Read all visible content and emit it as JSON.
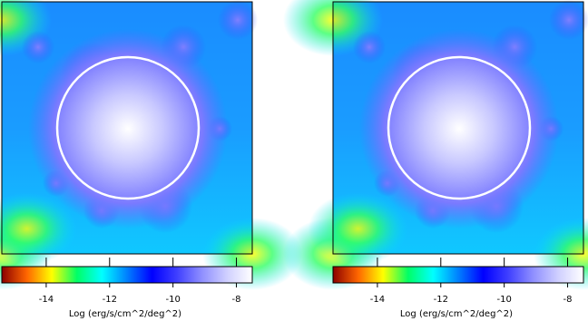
{
  "chart_data": [
    {
      "type": "image",
      "colorbar": {
        "label": "Log (erg/s/cm^2/deg^2)",
        "lim": [
          -15.4,
          -7.5
        ],
        "ticks": [
          -14,
          -12,
          -10,
          -8
        ],
        "colormap": [
          "#8b0000",
          "#ff6600",
          "#ffff00",
          "#00ff66",
          "#00ffff",
          "#0080ff",
          "#0000ff",
          "#4040ff",
          "#9090ff",
          "#d0d0ff",
          "#ffffff"
        ]
      }
    },
    {
      "type": "image",
      "colorbar": {
        "label": "Log (erg/s/cm^2/deg^2)",
        "lim": [
          -15.4,
          -7.5
        ],
        "ticks": [
          -14,
          -12,
          -10,
          -8
        ],
        "colormap": [
          "#8b0000",
          "#ff6600",
          "#ffff00",
          "#00ff66",
          "#00ffff",
          "#0080ff",
          "#0000ff",
          "#4040ff",
          "#9090ff",
          "#d0d0ff",
          "#ffffff"
        ]
      }
    }
  ]
}
